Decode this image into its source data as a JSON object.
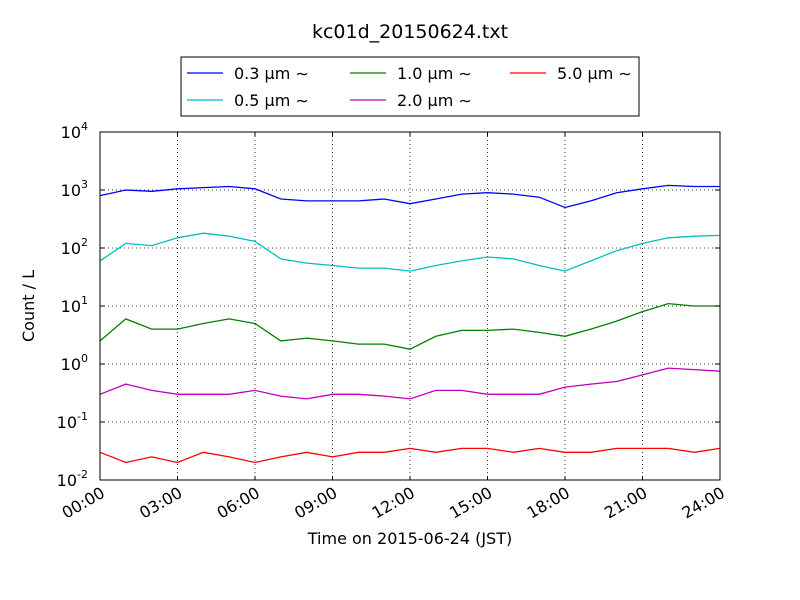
{
  "chart_data": {
    "type": "line",
    "title": "kc01d_20150624.txt",
    "xlabel": "Time on 2015-06-24 (JST)",
    "ylabel": "Count / L",
    "yscale": "log",
    "ylim": [
      0.01,
      10000
    ],
    "xlim": [
      "00:00",
      "24:00"
    ],
    "grid": true,
    "legend_position": "top",
    "x_tick_labels": [
      "00:00",
      "03:00",
      "06:00",
      "09:00",
      "12:00",
      "15:00",
      "18:00",
      "21:00",
      "24:00"
    ],
    "y_ticks": [
      {
        "base": "10",
        "exp": "-2"
      },
      {
        "base": "10",
        "exp": "-1"
      },
      {
        "base": "10",
        "exp": "0"
      },
      {
        "base": "10",
        "exp": "1"
      },
      {
        "base": "10",
        "exp": "2"
      },
      {
        "base": "10",
        "exp": "3"
      },
      {
        "base": "10",
        "exp": "4"
      }
    ],
    "x": [
      "00:00",
      "01:00",
      "02:00",
      "03:00",
      "04:00",
      "05:00",
      "06:00",
      "07:00",
      "08:00",
      "09:00",
      "10:00",
      "11:00",
      "12:00",
      "13:00",
      "14:00",
      "15:00",
      "16:00",
      "17:00",
      "18:00",
      "19:00",
      "20:00",
      "21:00",
      "22:00",
      "23:00",
      "24:00"
    ],
    "series": [
      {
        "name": "0.3 μm ∼",
        "color": "#0000ff",
        "values": [
          800,
          1000,
          950,
          1050,
          1100,
          1150,
          1050,
          700,
          650,
          650,
          650,
          700,
          580,
          700,
          850,
          900,
          850,
          750,
          500,
          650,
          900,
          1050,
          1200,
          1150,
          1150
        ]
      },
      {
        "name": "0.5 μm ∼",
        "color": "#00bfbf",
        "values": [
          60,
          120,
          110,
          150,
          180,
          160,
          130,
          65,
          55,
          50,
          45,
          45,
          40,
          50,
          60,
          70,
          65,
          50,
          40,
          60,
          90,
          120,
          150,
          160,
          165
        ]
      },
      {
        "name": "1.0 μm ∼",
        "color": "#008000",
        "values": [
          2.5,
          6,
          4,
          4,
          5,
          6,
          5,
          2.5,
          2.8,
          2.5,
          2.2,
          2.2,
          1.8,
          3,
          3.8,
          3.8,
          4,
          3.5,
          3,
          4,
          5.5,
          8,
          11,
          10,
          10
        ]
      },
      {
        "name": "2.0 μm ∼",
        "color": "#bf00bf",
        "values": [
          0.3,
          0.45,
          0.35,
          0.3,
          0.3,
          0.3,
          0.35,
          0.28,
          0.25,
          0.3,
          0.3,
          0.28,
          0.25,
          0.35,
          0.35,
          0.3,
          0.3,
          0.3,
          0.4,
          0.45,
          0.5,
          0.65,
          0.85,
          0.8,
          0.75
        ]
      },
      {
        "name": "5.0 μm ∼",
        "color": "#ff0000",
        "values": [
          0.03,
          0.02,
          0.025,
          0.02,
          0.03,
          0.025,
          0.02,
          0.025,
          0.03,
          0.025,
          0.03,
          0.03,
          0.035,
          0.03,
          0.035,
          0.035,
          0.03,
          0.035,
          0.03,
          0.03,
          0.035,
          0.035,
          0.035,
          0.03,
          0.035
        ]
      }
    ]
  }
}
